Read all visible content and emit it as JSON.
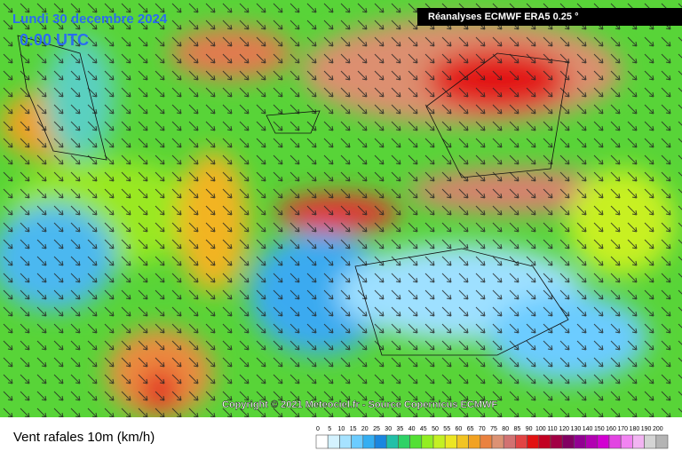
{
  "header": {
    "date": "Lundi 30 decembre 2024",
    "time": "0:00 UTC",
    "source_badge": "Réanalyses ECMWF ERA5 0.25 °"
  },
  "copyright": "Copyright © 2021 Meteociel.fr - Source Copernicus ECMWF",
  "footer": {
    "title": "Vent rafales 10m (km/h)"
  },
  "legend": {
    "items": [
      {
        "label": "0",
        "color": "#ffffff"
      },
      {
        "label": "5",
        "color": "#d4f2ff"
      },
      {
        "label": "10",
        "color": "#a6e2ff"
      },
      {
        "label": "15",
        "color": "#6cccff"
      },
      {
        "label": "20",
        "color": "#34aef2"
      },
      {
        "label": "25",
        "color": "#1a86e0"
      },
      {
        "label": "30",
        "color": "#22c0a8"
      },
      {
        "label": "35",
        "color": "#2ed266"
      },
      {
        "label": "40",
        "color": "#52e034"
      },
      {
        "label": "45",
        "color": "#92ee22"
      },
      {
        "label": "50",
        "color": "#c4f022"
      },
      {
        "label": "55",
        "color": "#ece622"
      },
      {
        "label": "60",
        "color": "#f2c422"
      },
      {
        "label": "65",
        "color": "#f2a222"
      },
      {
        "label": "70",
        "color": "#ea8240"
      },
      {
        "label": "75",
        "color": "#dc9274"
      },
      {
        "label": "80",
        "color": "#d27272"
      },
      {
        "label": "85",
        "color": "#e24444"
      },
      {
        "label": "90",
        "color": "#e21212"
      },
      {
        "label": "100",
        "color": "#c20022"
      },
      {
        "label": "110",
        "color": "#a20044"
      },
      {
        "label": "120",
        "color": "#820062"
      },
      {
        "label": "130",
        "color": "#920092"
      },
      {
        "label": "140",
        "color": "#b200b2"
      },
      {
        "label": "150",
        "color": "#d200d2"
      },
      {
        "label": "160",
        "color": "#e244e2"
      },
      {
        "label": "170",
        "color": "#f284f2"
      },
      {
        "label": "180",
        "color": "#f2b4f2"
      },
      {
        "label": "190",
        "color": "#d4d4d4"
      },
      {
        "label": "200",
        "color": "#b4b4b4"
      }
    ]
  }
}
